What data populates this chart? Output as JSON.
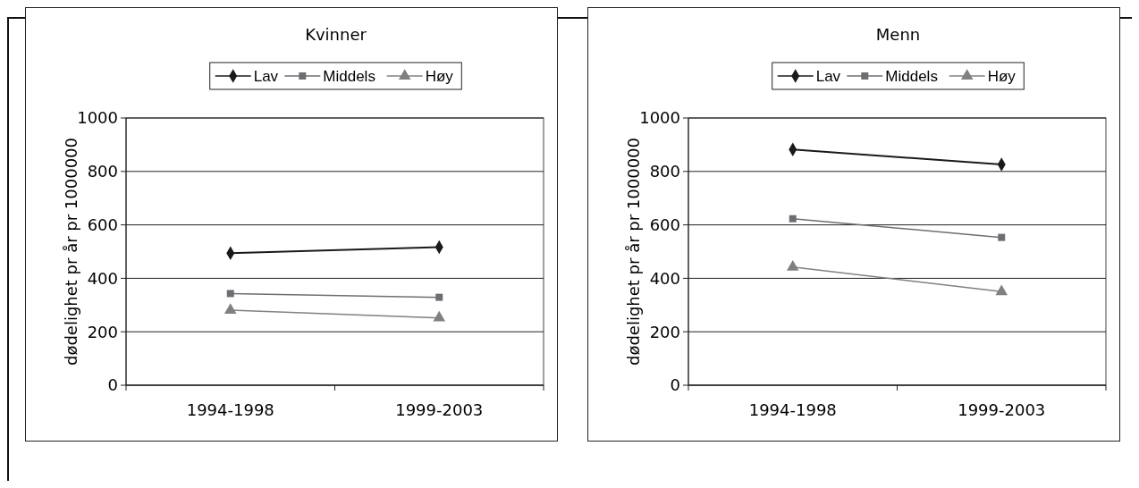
{
  "chart_data": [
    {
      "type": "line",
      "title": "Kvinner",
      "ylabel": "dødelighet pr år pr 1000000",
      "categories": [
        "1994-1998",
        "1999-2003"
      ],
      "ylim": [
        0,
        1000
      ],
      "yticks": [
        0,
        200,
        400,
        600,
        800,
        1000
      ],
      "grid": "y",
      "legend": "top",
      "series": [
        {
          "name": "Lav",
          "color": "#1a1a1a",
          "marker": "diamond",
          "values": [
            494,
            517
          ]
        },
        {
          "name": "Middels",
          "color": "#6d6e71",
          "marker": "square",
          "values": [
            343,
            329
          ]
        },
        {
          "name": "Høy",
          "color": "#808080",
          "marker": "triangle",
          "values": [
            281,
            252
          ]
        }
      ]
    },
    {
      "type": "line",
      "title": "Menn",
      "ylabel": "dødelighet pr år pr 1000000",
      "categories": [
        "1994-1998",
        "1999-2003"
      ],
      "ylim": [
        0,
        1000
      ],
      "yticks": [
        0,
        200,
        400,
        600,
        800,
        1000
      ],
      "grid": "y",
      "legend": "top",
      "series": [
        {
          "name": "Lav",
          "color": "#1a1a1a",
          "marker": "diamond",
          "values": [
            882,
            826
          ]
        },
        {
          "name": "Middels",
          "color": "#6d6e71",
          "marker": "square",
          "values": [
            623,
            553
          ]
        },
        {
          "name": "Høy",
          "color": "#808080",
          "marker": "triangle",
          "values": [
            442,
            350
          ]
        }
      ]
    }
  ]
}
